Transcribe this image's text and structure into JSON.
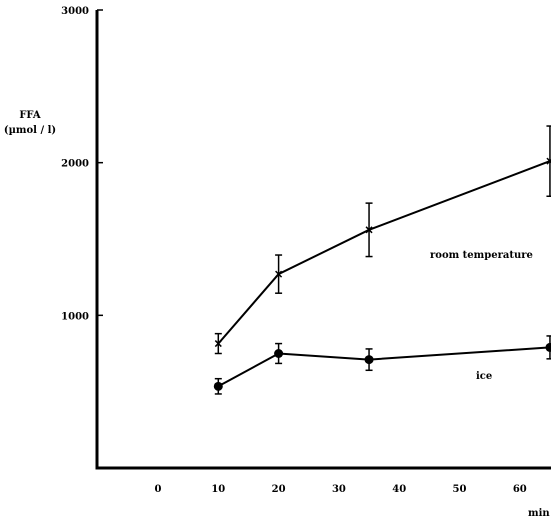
{
  "chart_data": {
    "type": "line",
    "ylabel": "FFA",
    "ylabel_unit": "(µmol / l)",
    "xlabel": "min",
    "x_ticks": [
      0,
      10,
      20,
      30,
      40,
      50,
      60
    ],
    "y_ticks": [
      1000,
      2000,
      3000
    ],
    "xlim": [
      -10,
      66
    ],
    "ylim": [
      0,
      3000
    ],
    "grid": false,
    "series": [
      {
        "name": "room temperature",
        "marker": "x",
        "x": [
          10,
          20,
          35,
          65
        ],
        "y": [
          815,
          1270,
          1560,
          2010
        ],
        "err": [
          65,
          125,
          175,
          230
        ]
      },
      {
        "name": "ice",
        "marker": "filled-circle",
        "x": [
          10,
          20,
          35,
          65
        ],
        "y": [
          535,
          750,
          710,
          790
        ],
        "err": [
          50,
          65,
          70,
          75
        ]
      }
    ]
  }
}
